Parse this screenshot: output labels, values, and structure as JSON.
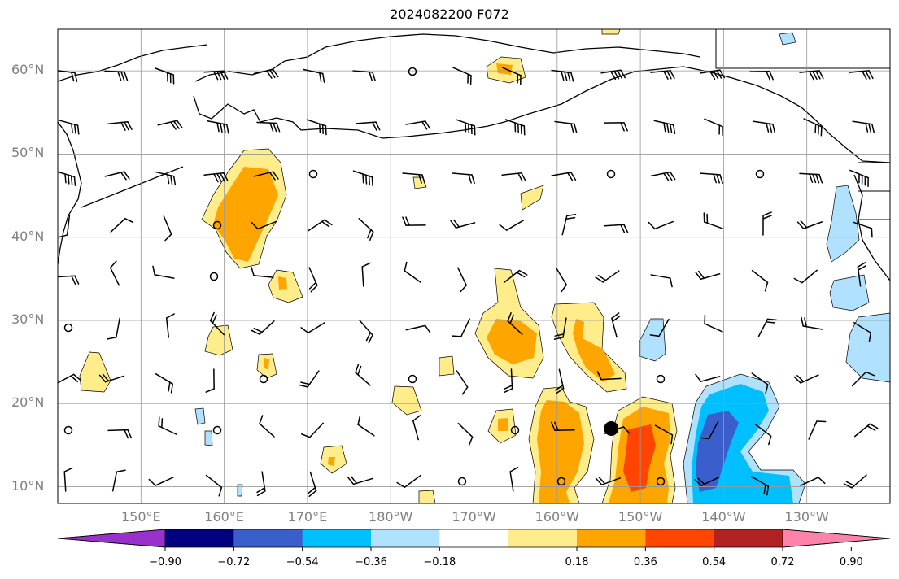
{
  "title": "2024082200 F072",
  "map": {
    "projection": "PlateCarree",
    "lon_range": [
      140,
      240
    ],
    "lat_range": [
      8,
      65
    ],
    "lat_ticks": [
      {
        "value": 10,
        "label": "10°N"
      },
      {
        "value": 20,
        "label": "20°N"
      },
      {
        "value": 30,
        "label": "30°N"
      },
      {
        "value": 40,
        "label": "40°N"
      },
      {
        "value": 50,
        "label": "50°N"
      },
      {
        "value": 60,
        "label": "60°N"
      }
    ],
    "lon_ticks": [
      {
        "value": 150,
        "label": "150°E"
      },
      {
        "value": 160,
        "label": "160°E"
      },
      {
        "value": 170,
        "label": "170°E"
      },
      {
        "value": 180,
        "label": "180°W"
      },
      {
        "value": 190,
        "label": "170°W"
      },
      {
        "value": 200,
        "label": "160°W"
      },
      {
        "value": 210,
        "label": "150°W"
      },
      {
        "value": 220,
        "label": "140°W"
      },
      {
        "value": 230,
        "label": "130°W"
      }
    ],
    "gridlines": true,
    "storm_marker": {
      "lon": 206.5,
      "lat": 17.0,
      "symbol": "filled-circle"
    },
    "wind_barbs": "grid every 6° longitude × 6.5° latitude",
    "shaded_field_legend": "colorbar below map"
  },
  "colorbar": {
    "ticks": [
      "−0.90",
      "−0.72",
      "−0.54",
      "−0.36",
      "−0.18",
      "0.18",
      "0.36",
      "0.54",
      "0.72",
      "0.90"
    ],
    "colors": [
      "#9932cc",
      "#000080",
      "#3a5fcd",
      "#00bfff",
      "#b0e2ff",
      "#ffffff",
      "#ffec8b",
      "#ffa500",
      "#ff4500",
      "#b22222",
      "#ff82ab"
    ],
    "extend": "both"
  }
}
